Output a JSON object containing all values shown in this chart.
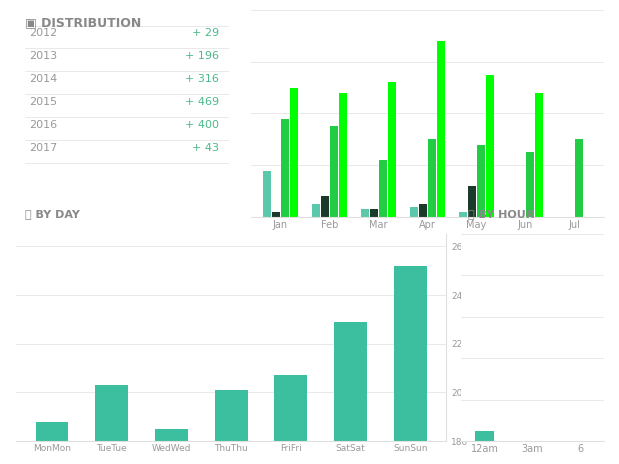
{
  "title_distribution": "DISTRIBUTION",
  "title_by_day": "BY DAY",
  "title_by_hour": "BY HOUR",
  "years": [
    2012,
    2013,
    2014,
    2015,
    2016,
    2017
  ],
  "year_values": [
    29,
    196,
    316,
    469,
    400,
    43
  ],
  "months": [
    "Jan",
    "Feb",
    "Mar",
    "Apr",
    "May",
    "Jun",
    "Jul"
  ],
  "monthly_data": {
    "2012": [
      18,
      5,
      3,
      4,
      2,
      0,
      0
    ],
    "2013": [
      2,
      8,
      3,
      5,
      12,
      0,
      0
    ],
    "2014": [
      38,
      35,
      22,
      30,
      28,
      25,
      30
    ],
    "2015": [
      50,
      48,
      52,
      68,
      55,
      48,
      0
    ]
  },
  "bar_colors": {
    "2012": "#5bc8ac",
    "2013": "#1a3a2a",
    "2014": "#22cc44",
    "2015": "#00ff00"
  },
  "days": [
    "MonMon",
    "TueTue",
    "WedWed",
    "ThuThu",
    "FriFri",
    "SatSat",
    "SunSun"
  ],
  "day_values": [
    188,
    203,
    185,
    201,
    207,
    229,
    252
  ],
  "day_bar_color": "#3bbf9e",
  "day_ylim": [
    180,
    265
  ],
  "day_yticks": [
    180,
    200,
    220,
    240,
    260
  ],
  "hour_labels": [
    "12am",
    "3am",
    "6"
  ],
  "bg_color": "#ffffff",
  "panel_bg": "#eeeeee",
  "text_color": "#999999",
  "title_color": "#888888",
  "separator_color": "#e0e0e0",
  "green_color": "#4db88a"
}
